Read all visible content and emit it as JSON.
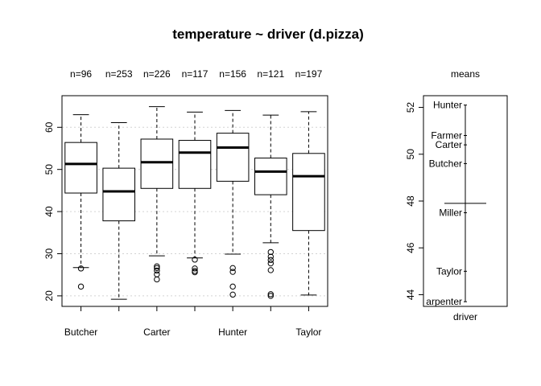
{
  "chart_data": [
    {
      "type": "box",
      "title": "temperature ~ driver (d.pizza)",
      "xlabel": "",
      "ylabel": "",
      "categories": [
        "Butcher",
        "Carpenter",
        "Carter",
        "Farmer",
        "Hunter",
        "Miller",
        "Taylor"
      ],
      "x_tick_labels": [
        "Butcher",
        "Carter",
        "Hunter",
        "Taylor"
      ],
      "counts": [
        "n=96",
        "n=253",
        "n=226",
        "n=117",
        "n=156",
        "n=121",
        "n=197"
      ],
      "ylim": [
        17.5,
        67.5
      ],
      "yticks": [
        20,
        30,
        40,
        50,
        60
      ],
      "grid": true,
      "boxes": [
        {
          "whisker_low": 26.7,
          "q1": 44.4,
          "median": 51.3,
          "q3": 56.4,
          "whisker_high": 63.0,
          "outliers": [
            26.5,
            22.2
          ]
        },
        {
          "whisker_low": 19.2,
          "q1": 37.8,
          "median": 44.8,
          "q3": 50.3,
          "whisker_high": 61.1,
          "outliers": []
        },
        {
          "whisker_low": 29.5,
          "q1": 45.5,
          "median": 51.7,
          "q3": 57.2,
          "whisker_high": 64.9,
          "outliers": [
            27.0,
            26.6,
            26.0,
            25.1,
            23.9
          ]
        },
        {
          "whisker_low": 29.0,
          "q1": 45.5,
          "median": 54.0,
          "q3": 56.9,
          "whisker_high": 63.6,
          "outliers": [
            28.6,
            26.5,
            25.9,
            25.6
          ]
        },
        {
          "whisker_low": 29.9,
          "q1": 47.2,
          "median": 55.2,
          "q3": 58.6,
          "whisker_high": 64.0,
          "outliers": [
            26.6,
            25.7,
            22.2,
            20.3
          ]
        },
        {
          "whisker_low": 32.6,
          "q1": 44.0,
          "median": 49.5,
          "q3": 52.7,
          "whisker_high": 62.9,
          "outliers": [
            30.4,
            29.3,
            28.5,
            27.7,
            26.1,
            20.4,
            20.0
          ]
        },
        {
          "whisker_low": 20.2,
          "q1": 35.5,
          "median": 48.4,
          "q3": 53.8,
          "whisker_high": 63.7,
          "outliers": []
        }
      ]
    },
    {
      "type": "dot-means",
      "title": "means",
      "xlabel": "driver",
      "ylim": [
        43.5,
        52.5
      ],
      "yticks": [
        44,
        46,
        48,
        50,
        52
      ],
      "overall_mean": 47.9,
      "points": [
        {
          "label": "Hunter",
          "value": 52.1
        },
        {
          "label": "Farmer",
          "value": 50.8
        },
        {
          "label": "Carter",
          "value": 50.4
        },
        {
          "label": "Butcher",
          "value": 49.6
        },
        {
          "label": "Miller",
          "value": 47.5
        },
        {
          "label": "Taylor",
          "value": 45.0
        },
        {
          "label": "arpenter",
          "value": 43.7
        }
      ]
    }
  ]
}
